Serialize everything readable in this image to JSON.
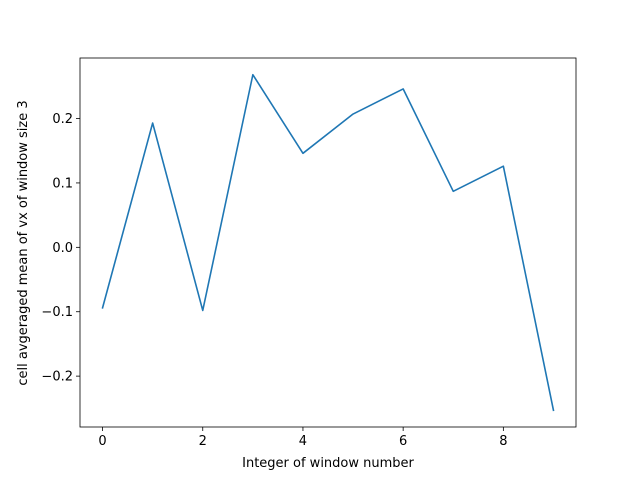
{
  "chart_data": {
    "type": "line",
    "title": "",
    "xlabel": "Integer of window number",
    "ylabel": "cell avgeraged mean of vx of window size 3",
    "x": [
      0,
      1,
      2,
      3,
      4,
      5,
      6,
      7,
      8,
      9
    ],
    "series": [
      {
        "values": [
          -0.094,
          0.193,
          -0.098,
          0.268,
          0.146,
          0.207,
          0.246,
          0.087,
          0.126,
          -0.253
        ],
        "color": "#1f77b4"
      }
    ],
    "xlim": [
      -0.45,
      9.45
    ],
    "ylim": [
      -0.279,
      0.294
    ],
    "x_ticks": [
      0,
      2,
      4,
      6,
      8
    ],
    "x_tick_labels": [
      "0",
      "2",
      "4",
      "6",
      "8"
    ],
    "y_ticks": [
      -0.2,
      -0.1,
      0.0,
      0.1,
      0.2
    ],
    "y_tick_labels": [
      "−0.2",
      "−0.1",
      "0.0",
      "0.1",
      "0.2"
    ],
    "grid": false,
    "legend": "none"
  }
}
